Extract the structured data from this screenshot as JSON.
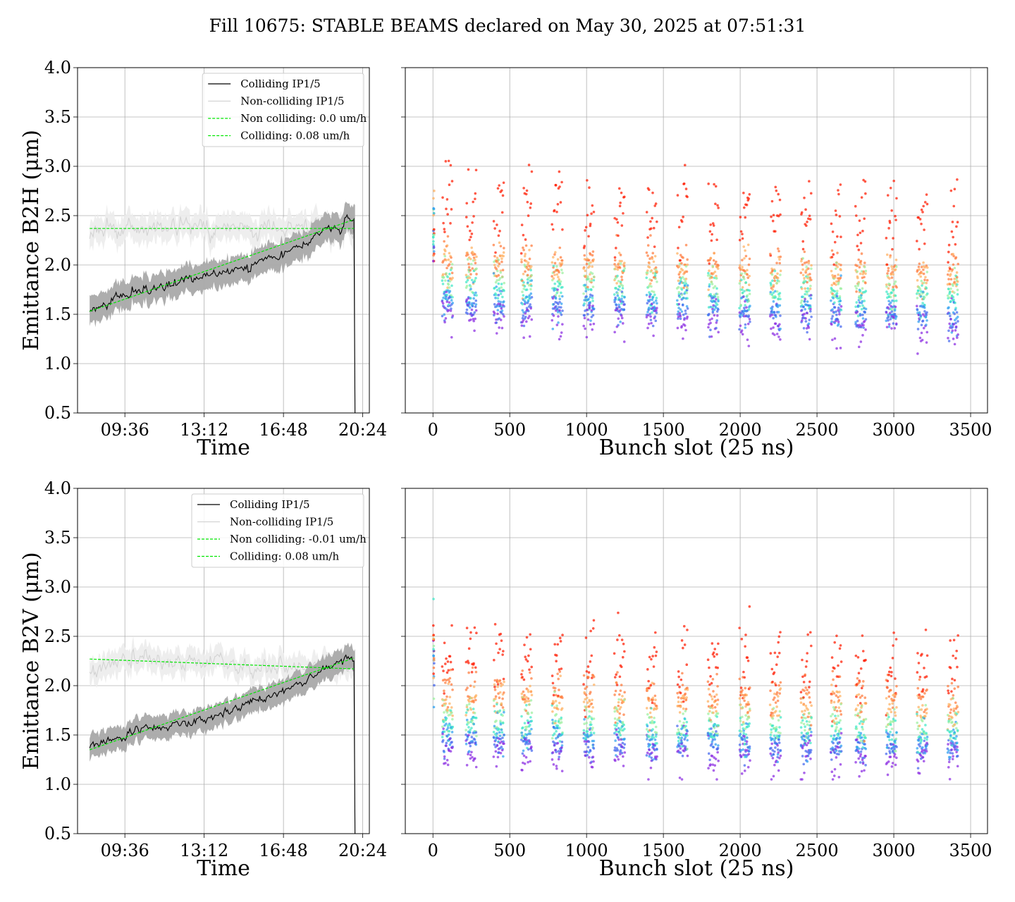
{
  "figure": {
    "title": "Fill 10675: STABLE BEAMS declared on May 30, 2025 at 07:51:31"
  },
  "colors": {
    "colliding": "#000000",
    "colliding_band": "#a9a9a9",
    "non_colliding": "#d3d3d3",
    "non_colliding_band": "#ececec",
    "fit": "#00e600",
    "scatter_colormap": "rainbow"
  },
  "chart_data": [
    {
      "id": "b2h-time",
      "type": "line",
      "xlabel": "Time",
      "ylabel": "Emittance B2H (μm)",
      "ylim": [
        0.5,
        4.0
      ],
      "x_ticks": [
        "09:36",
        "13:12",
        "16:48",
        "20:24"
      ],
      "y_ticks": [
        "0.5",
        "1.0",
        "1.5",
        "2.0",
        "2.5",
        "3.0",
        "3.5",
        "4.0"
      ],
      "grid": true,
      "legend_position": "upper-right",
      "legend": [
        "Colliding IP1/5",
        "Non-colliding IP1/5",
        "Non colliding: 0.0 um/h",
        "Colliding: 0.08 um/h"
      ],
      "series": [
        {
          "name": "Colliding IP1/5",
          "x": [
            "08:00",
            "09:36",
            "13:12",
            "16:48",
            "20:00"
          ],
          "y": [
            1.52,
            1.7,
            1.88,
            2.1,
            2.48
          ],
          "band": 0.14
        },
        {
          "name": "Non-colliding IP1/5",
          "x": [
            "08:00",
            "09:36",
            "13:12",
            "16:48",
            "20:00"
          ],
          "y": [
            2.32,
            2.38,
            2.39,
            2.37,
            2.4
          ],
          "band": 0.13
        },
        {
          "name": "Non colliding: 0.0 um/h",
          "x": [
            "08:00",
            "20:00"
          ],
          "y": [
            2.37,
            2.37
          ]
        },
        {
          "name": "Colliding: 0.08 um/h",
          "x": [
            "08:00",
            "20:00"
          ],
          "y": [
            1.53,
            2.46
          ]
        }
      ]
    },
    {
      "id": "b2h-bunch",
      "type": "scatter",
      "xlabel": "Bunch slot (25 ns)",
      "ylabel": "",
      "ylim": [
        0.5,
        4.0
      ],
      "xlim": [
        -180,
        3610
      ],
      "x_ticks": [
        "0",
        "500",
        "1000",
        "1500",
        "2000",
        "2500",
        "3000",
        "3500"
      ],
      "grid": true,
      "bunch_trains_start": [
        60,
        215,
        395,
        575,
        775,
        980,
        1180,
        1390,
        1590,
        1790,
        1995,
        2195,
        2395,
        2590,
        2750,
        2950,
        3150,
        3350
      ],
      "train_length": 70,
      "last_slot": 3425,
      "y_bands": {
        "red": 2.42,
        "orange": 2.05,
        "green": 1.88,
        "blue": 1.67,
        "violet": 1.52
      },
      "band_slope_per_1000_slots": -0.04,
      "range_over_slots": [
        1.0,
        3.4
      ]
    },
    {
      "id": "b2v-time",
      "type": "line",
      "xlabel": "Time",
      "ylabel": "Emittance B2V (μm)",
      "ylim": [
        0.5,
        4.0
      ],
      "x_ticks": [
        "09:36",
        "13:12",
        "16:48",
        "20:24"
      ],
      "y_ticks": [
        "0.5",
        "1.0",
        "1.5",
        "2.0",
        "2.5",
        "3.0",
        "3.5",
        "4.0"
      ],
      "grid": true,
      "legend_position": "upper-right",
      "legend": [
        "Colliding IP1/5",
        "Non-colliding IP1/5",
        "Non colliding: -0.01 um/h",
        "Colliding: 0.08 um/h"
      ],
      "series": [
        {
          "name": "Colliding IP1/5",
          "x": [
            "08:00",
            "09:36",
            "13:12",
            "16:48",
            "20:00"
          ],
          "y": [
            1.37,
            1.5,
            1.66,
            1.95,
            2.3
          ],
          "band": 0.12
        },
        {
          "name": "Non-colliding IP1/5",
          "x": [
            "08:00",
            "09:36",
            "13:12",
            "16:48",
            "20:00"
          ],
          "y": [
            2.15,
            2.3,
            2.22,
            2.18,
            2.22
          ],
          "band": 0.12
        },
        {
          "name": "Non colliding: -0.01 um/h",
          "x": [
            "08:00",
            "20:00"
          ],
          "y": [
            2.27,
            2.17
          ]
        },
        {
          "name": "Colliding: 0.08 um/h",
          "x": [
            "08:00",
            "20:00"
          ],
          "y": [
            1.35,
            2.28
          ]
        }
      ]
    },
    {
      "id": "b2v-bunch",
      "type": "scatter",
      "xlabel": "Bunch slot (25 ns)",
      "ylabel": "",
      "ylim": [
        0.5,
        4.0
      ],
      "xlim": [
        -180,
        3610
      ],
      "x_ticks": [
        "0",
        "500",
        "1000",
        "1500",
        "2000",
        "2500",
        "3000",
        "3500"
      ],
      "grid": true,
      "bunch_trains_start": [
        60,
        215,
        395,
        575,
        775,
        980,
        1180,
        1390,
        1590,
        1790,
        1995,
        2195,
        2395,
        2590,
        2750,
        2950,
        3150,
        3350
      ],
      "train_length": 70,
      "last_slot": 3425,
      "y_bands": {
        "red": 2.1,
        "orange": 1.95,
        "green": 1.68,
        "blue": 1.52,
        "violet": 1.35
      },
      "band_slope_per_1000_slots": -0.03,
      "range_over_slots": [
        1.05,
        3.08
      ]
    }
  ]
}
